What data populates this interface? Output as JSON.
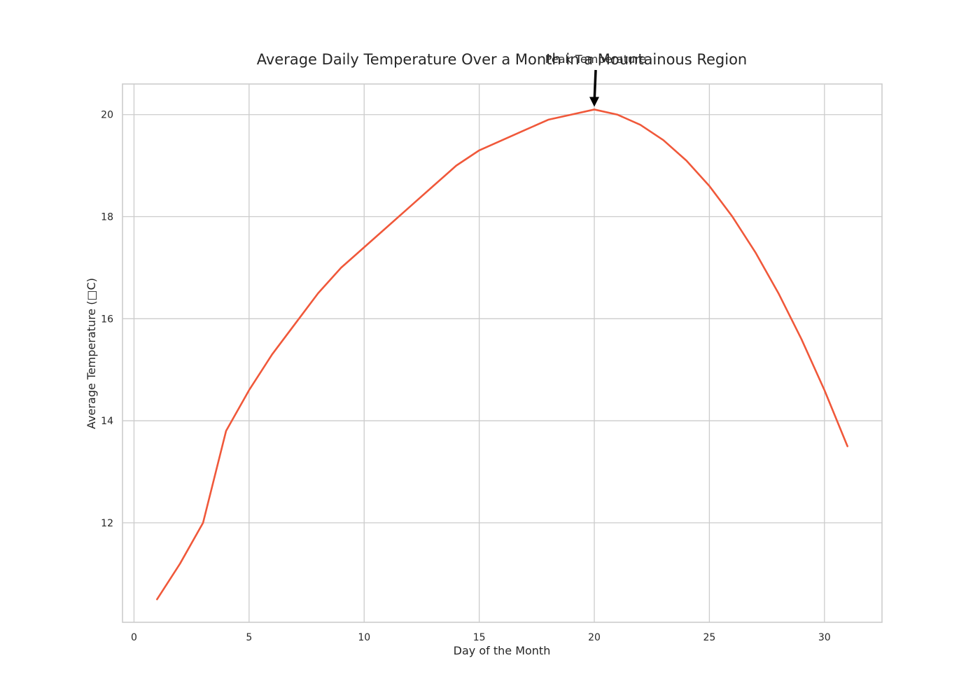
{
  "chart_data": {
    "type": "line",
    "title": "Average Daily Temperature Over a Month in a Mountainous Region",
    "xlabel": "Day of the Month",
    "ylabel": "Average Temperature (□C)",
    "xlim": [
      -0.5,
      32.5
    ],
    "ylim": [
      10.05,
      20.6
    ],
    "xticks": [
      0,
      5,
      10,
      15,
      20,
      25,
      30
    ],
    "yticks": [
      12,
      14,
      16,
      18,
      20
    ],
    "grid": true,
    "legend": "none",
    "series": [
      {
        "color": "#f0583a",
        "x": [
          1,
          2,
          3,
          4,
          5,
          6,
          7,
          8,
          9,
          10,
          11,
          12,
          13,
          14,
          15,
          16,
          17,
          18,
          19,
          20,
          21,
          22,
          23,
          24,
          25,
          26,
          27,
          28,
          29,
          30,
          31
        ],
        "y": [
          10.5,
          11.2,
          12.0,
          13.8,
          14.6,
          15.3,
          15.9,
          16.5,
          17.0,
          17.4,
          17.8,
          18.2,
          18.6,
          19.0,
          19.3,
          19.5,
          19.7,
          19.9,
          20.0,
          20.1,
          20.0,
          19.8,
          19.5,
          19.1,
          18.6,
          18.0,
          17.3,
          16.5,
          15.6,
          14.6,
          13.5
        ]
      }
    ],
    "annotation": {
      "text": "Peak Temperature",
      "x": 20,
      "y": 20.1
    }
  }
}
